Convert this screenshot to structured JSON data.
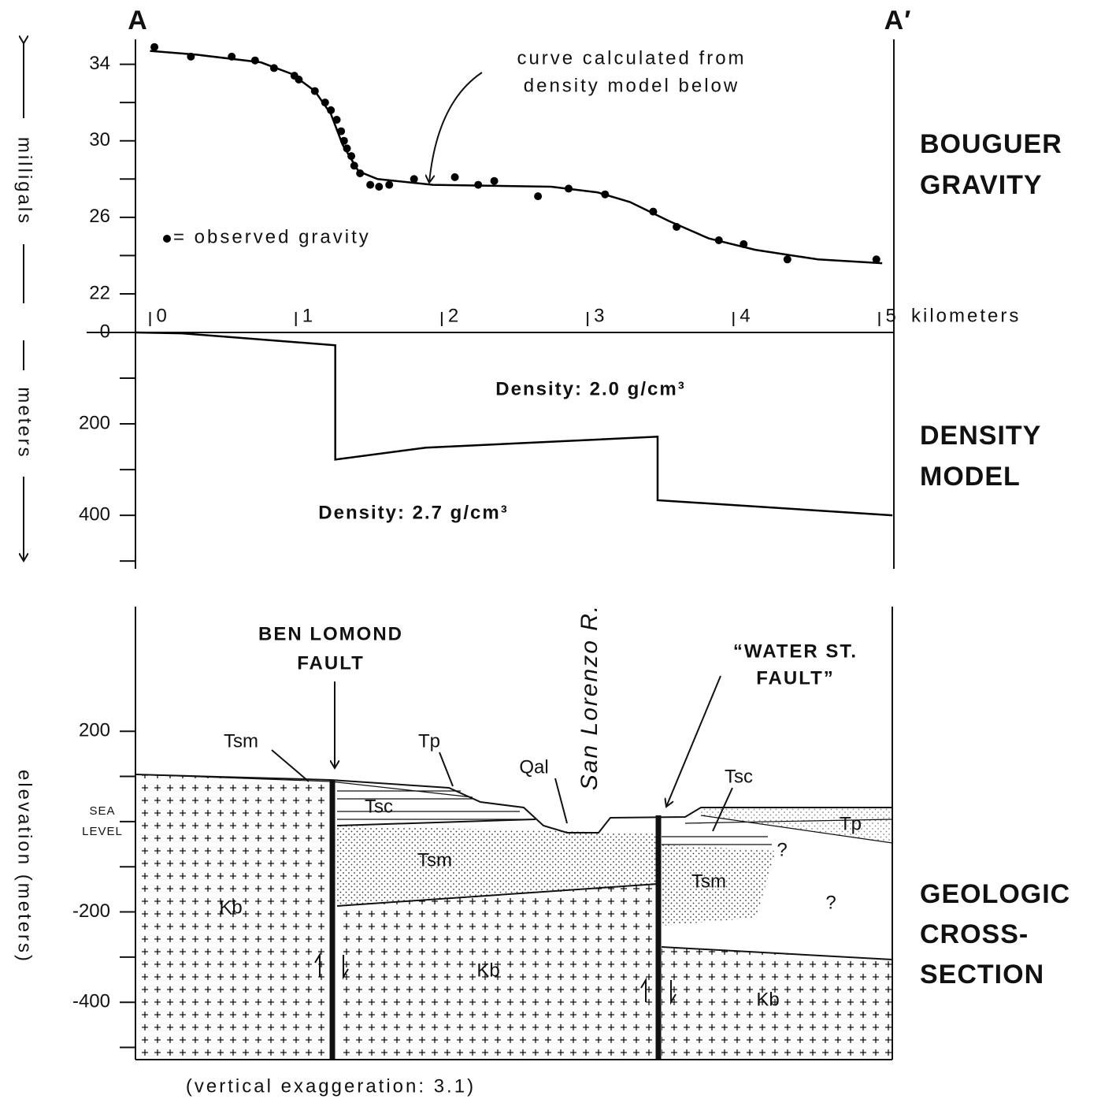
{
  "chart_data": [
    {
      "type": "scatter",
      "title": [
        "BOUGUER",
        "GRAVITY"
      ],
      "ylabel": "milligals",
      "xlabel": "kilometers",
      "section_labels": [
        "A",
        "A′"
      ],
      "xlim": [
        -0.1,
        5.1
      ],
      "xticks": [
        0,
        1,
        2,
        3,
        4,
        5
      ],
      "ylim": [
        21.3,
        35.3
      ],
      "yticks": [
        22,
        26,
        30,
        34
      ],
      "minor_yticks": [
        24,
        28,
        32
      ],
      "series": [
        {
          "name": "= observed gravity",
          "mode": "markers",
          "color": "#000000",
          "x": [
            0.03,
            0.28,
            0.56,
            0.72,
            0.85,
            0.99,
            1.02,
            1.13,
            1.2,
            1.24,
            1.28,
            1.31,
            1.33,
            1.35,
            1.38,
            1.4,
            1.44,
            1.51,
            1.57,
            1.64,
            1.81,
            2.09,
            2.25,
            2.36,
            2.66,
            2.87,
            3.12,
            3.45,
            3.61,
            3.9,
            4.07,
            4.37,
            4.98
          ],
          "values": [
            34.9,
            34.4,
            34.4,
            34.2,
            33.8,
            33.4,
            33.2,
            32.6,
            32.0,
            31.6,
            31.1,
            30.5,
            30.0,
            29.6,
            29.2,
            28.7,
            28.3,
            27.7,
            27.6,
            27.7,
            28.0,
            28.1,
            27.7,
            27.9,
            27.1,
            27.5,
            27.2,
            26.3,
            25.5,
            24.8,
            24.6,
            23.8,
            23.8
          ]
        },
        {
          "mode": "line",
          "color": "#000000",
          "x": [
            0,
            0.32,
            0.76,
            0.97,
            1.13,
            1.24,
            1.32,
            1.43,
            1.56,
            1.94,
            2.75,
            3.07,
            3.29,
            3.56,
            3.83,
            4.15,
            4.58,
            5.02
          ],
          "values": [
            34.7,
            34.5,
            34.1,
            33.5,
            32.6,
            31.4,
            29.8,
            28.4,
            28.0,
            27.7,
            27.6,
            27.3,
            26.8,
            25.8,
            24.9,
            24.3,
            23.8,
            23.6
          ]
        }
      ],
      "annotation": [
        "curve calculated from",
        "density model below"
      ]
    },
    {
      "type": "line",
      "title": [
        "DENSITY",
        "MODEL"
      ],
      "ylabel": "meters",
      "xlim": [
        -0.1,
        5.1
      ],
      "ylim": [
        517,
        0
      ],
      "yticks": [
        0,
        200,
        400
      ],
      "minor_yticks": [
        100,
        300,
        500
      ],
      "series": [
        {
          "mode": "line",
          "color": "#000000",
          "x": [
            -0.1,
            0.22,
            1.27,
            1.27,
            1.89,
            3.48,
            3.48,
            5.09
          ],
          "values": [
            0,
            2,
            28,
            278,
            252,
            228,
            367,
            400
          ]
        }
      ],
      "annotations": [
        "Density: 2.0 g/cm³",
        "Density: 2.7 g/cm³"
      ]
    }
  ],
  "cross_section": {
    "title": [
      "GEOLOGIC",
      "CROSS-",
      "SECTION"
    ],
    "ylabel": "elevation (meters)",
    "ylim": [
      -527,
      476
    ],
    "yticks": [
      200,
      -200,
      -400
    ],
    "minor_yticks": [
      100,
      0,
      -100,
      -300,
      -500
    ],
    "sea_level": [
      "SEA",
      "LEVEL"
    ],
    "fault_1": [
      "BEN LOMOND",
      "FAULT"
    ],
    "fault_2": [
      "“WATER ST.",
      "FAULT”"
    ],
    "river": "San Lorenzo R.",
    "units": [
      "Tsm",
      "Tp",
      "Qal",
      "Tsc",
      "Tsc",
      "Tp",
      "Tsm",
      "Tsm",
      "Kb",
      "Kb",
      "Kb",
      "?",
      "?"
    ],
    "caption": "(vertical exaggeration: 3.1)"
  }
}
